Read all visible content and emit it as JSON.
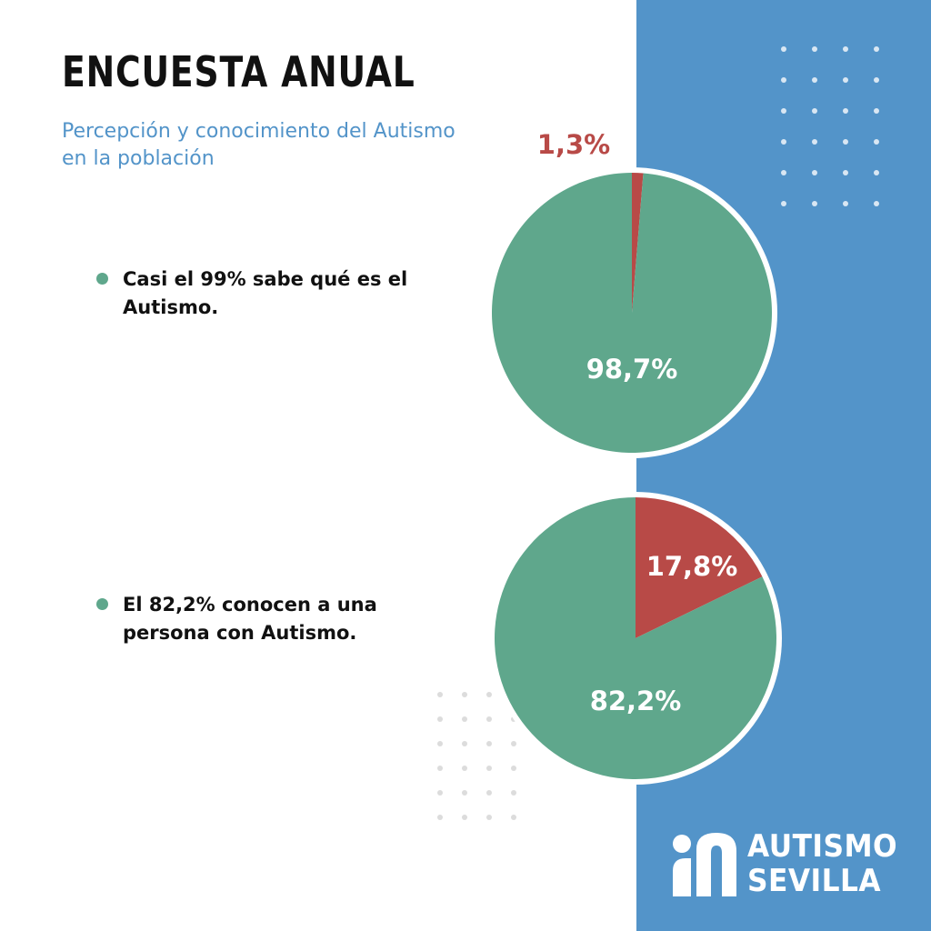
{
  "header": {
    "title": "ENCUESTA ANUAL",
    "subtitle": "Percepción y conocimiento del Autismo en la población"
  },
  "bullets": [
    {
      "text": "Casi el 99% sabe qué es el Autismo."
    },
    {
      "text": "El 82,2% conocen a una persona con Autismo."
    }
  ],
  "colors": {
    "accent_blue": "#5394c9",
    "green": "#5fa78c",
    "red": "#b84a47",
    "title": "#111111"
  },
  "chart_data": [
    {
      "type": "pie",
      "categories": [
        "",
        ""
      ],
      "values": [
        1.3,
        98.7
      ],
      "labels": [
        "1,3%",
        "98,7%"
      ],
      "slice_colors": [
        "#b84a47",
        "#5fa78c"
      ]
    },
    {
      "type": "pie",
      "categories": [
        "",
        ""
      ],
      "values": [
        17.8,
        82.2
      ],
      "labels": [
        "17,8%",
        "82,2%"
      ],
      "slice_colors": [
        "#b84a47",
        "#5fa78c"
      ]
    }
  ],
  "logo": {
    "line1": "AUTISMO",
    "line2": "SEVILLA",
    "icon": "autismo-sevilla-logo-icon"
  }
}
